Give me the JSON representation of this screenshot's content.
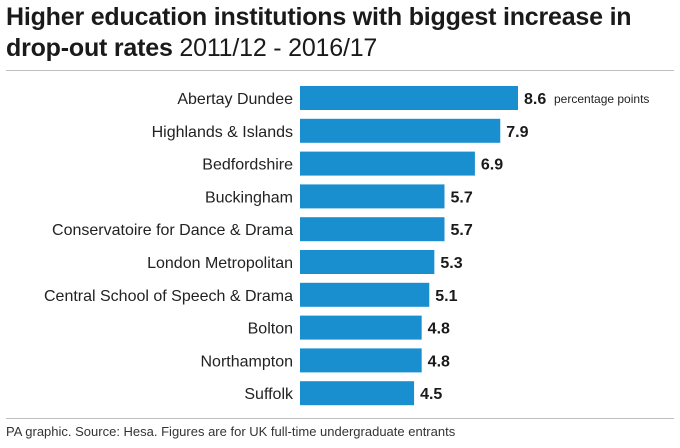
{
  "title": {
    "bold": "Higher education institutions with biggest increase in drop-out rates",
    "light": "2011/12 - 2016/17"
  },
  "footer": "PA graphic. Source: Hesa. Figures are for UK full-time undergraduate entrants",
  "chart_data": {
    "type": "bar",
    "orientation": "horizontal",
    "title": "Higher education institutions with biggest increase in drop-out rates 2011/12 - 2016/17",
    "unit_label": "percentage points",
    "categories": [
      "Abertay Dundee",
      "Highlands & Islands",
      "Bedfordshire",
      "Buckingham",
      "Conservatoire for Dance & Drama",
      "London Metropolitan",
      "Central School of Speech & Drama",
      "Bolton",
      "Northampton",
      "Suffolk"
    ],
    "values": [
      8.6,
      7.9,
      6.9,
      5.7,
      5.7,
      5.3,
      5.1,
      4.8,
      4.8,
      4.5
    ],
    "value_labels": [
      "8.6",
      "7.9",
      "6.9",
      "5.7",
      "5.7",
      "5.3",
      "5.1",
      "4.8",
      "4.8",
      "4.5"
    ],
    "bar_color": "#1a8fd0",
    "xlim": [
      0,
      8.6
    ],
    "grid": false
  }
}
